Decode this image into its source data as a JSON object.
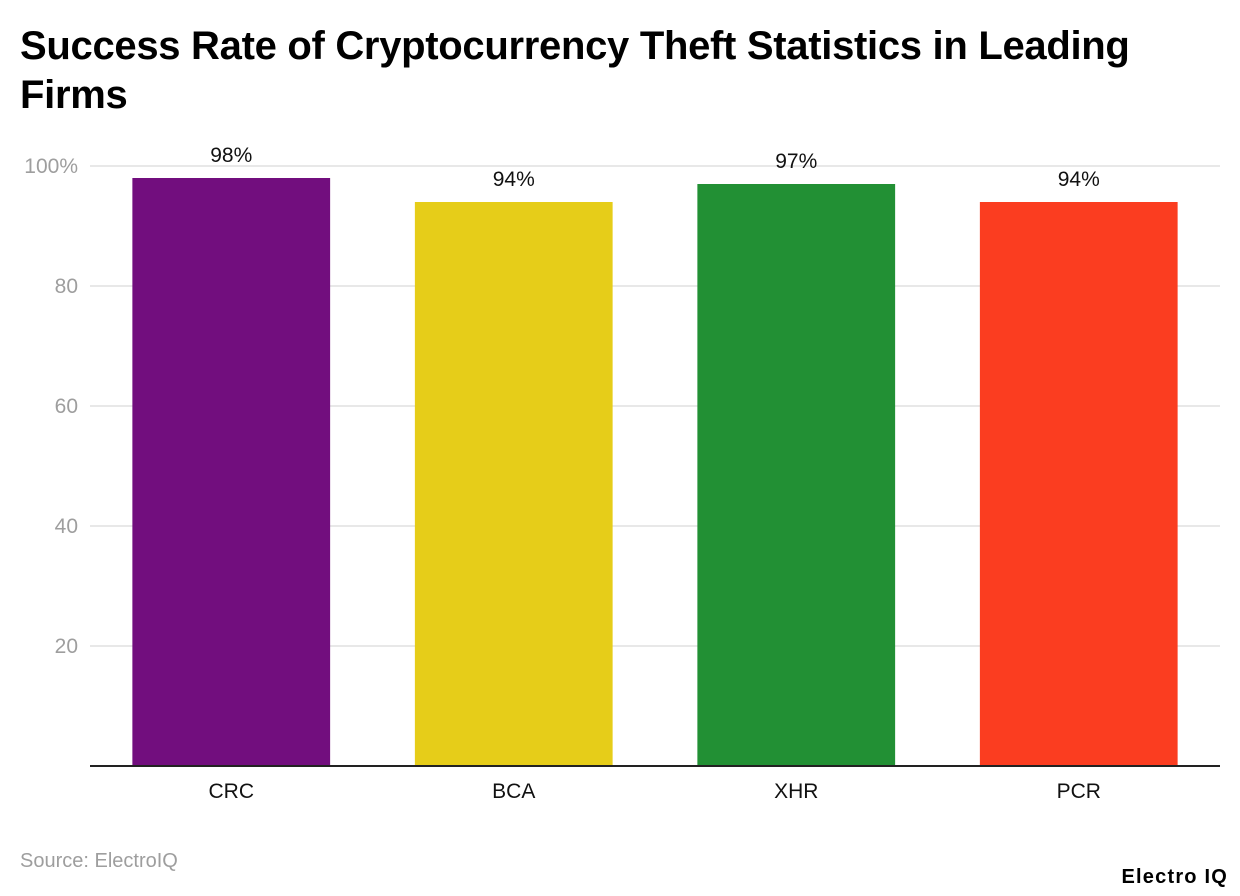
{
  "title": "Success Rate of Cryptocurrency Theft Statistics in Leading Firms",
  "source": "Source: ElectroIQ",
  "brand": "Electro IQ",
  "chart_data": {
    "type": "bar",
    "title": "Success Rate of Cryptocurrency Theft Statistics in Leading Firms",
    "categories": [
      "CRC",
      "BCA",
      "XHR",
      "PCR"
    ],
    "values": [
      98,
      94,
      97,
      94
    ],
    "data_labels": [
      "98%",
      "94%",
      "97%",
      "94%"
    ],
    "colors": [
      "#720e7e",
      "#e6cd19",
      "#229034",
      "#fb3d20"
    ],
    "ylim": [
      0,
      100
    ],
    "yticks": [
      20,
      40,
      60,
      80,
      100
    ],
    "ytick_labels": [
      "20",
      "40",
      "60",
      "80",
      "100%"
    ],
    "xlabel": "",
    "ylabel": "",
    "grid": true,
    "legend": "none"
  }
}
